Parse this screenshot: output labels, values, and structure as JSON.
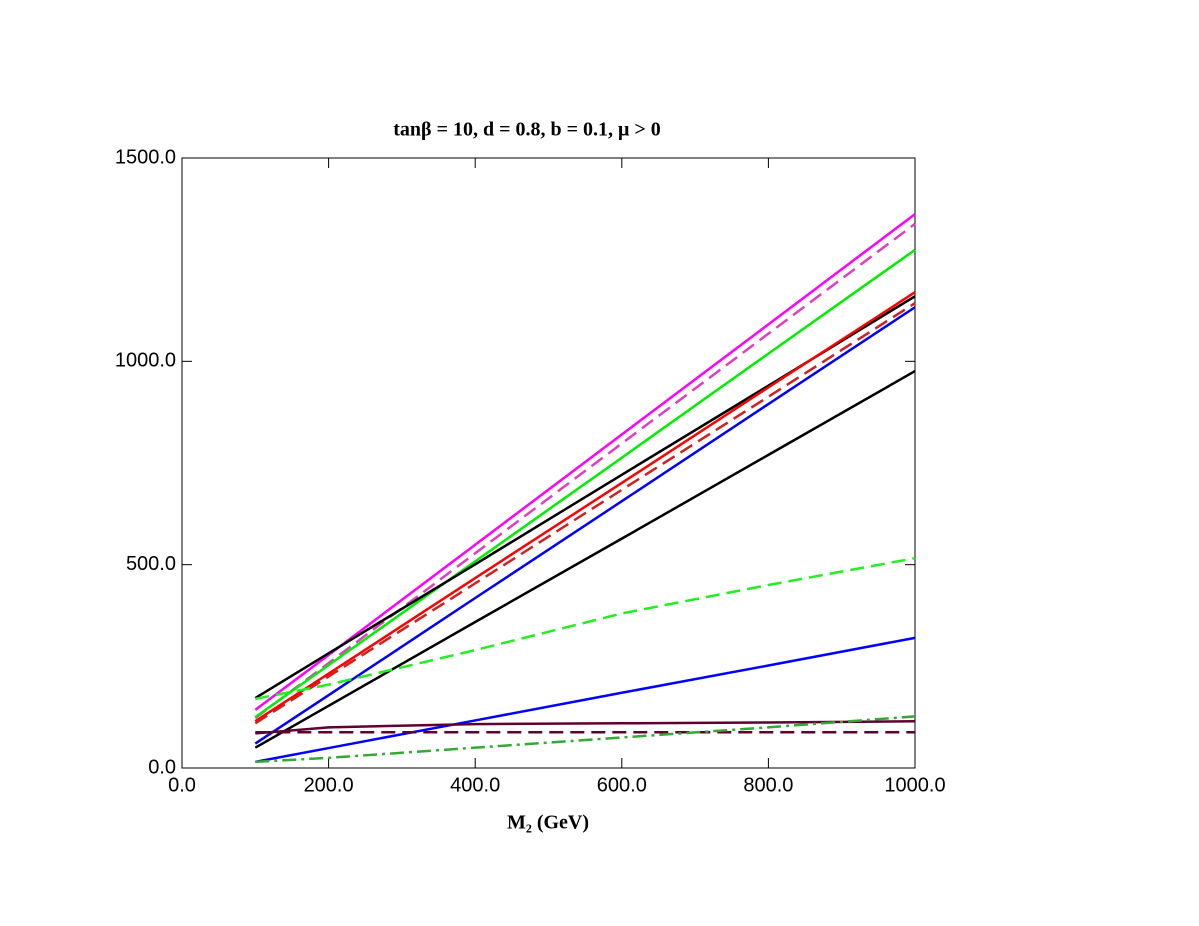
{
  "chart_data": {
    "type": "line",
    "title": "tanβ = 10, d = 0.8, b = 0.1, μ > 0",
    "xlabel": "M₂ (GeV)",
    "x": [
      100,
      200,
      400,
      600,
      800,
      1000
    ],
    "xlim": [
      0,
      1000
    ],
    "ylim": [
      0,
      1500
    ],
    "xticks": [
      {
        "value": 0,
        "label": "0.0"
      },
      {
        "value": 200,
        "label": "200.0"
      },
      {
        "value": 400,
        "label": "400.0"
      },
      {
        "value": 600,
        "label": "600.0"
      },
      {
        "value": 800,
        "label": "800.0"
      },
      {
        "value": 1000,
        "label": "1000.0"
      }
    ],
    "yticks": [
      {
        "value": 0,
        "label": "0.0"
      },
      {
        "value": 500,
        "label": "500.0"
      },
      {
        "value": 1000,
        "label": "1000.0"
      },
      {
        "value": 1500,
        "label": "1500.0"
      }
    ],
    "series": [
      {
        "color": "#ff00ff",
        "dash": "solid",
        "values": [
          143,
          278,
          549,
          820,
          1091,
          1362
        ]
      },
      {
        "color": "#e040c0",
        "dash": "dashed",
        "values": [
          123,
          258,
          528,
          798,
          1068,
          1338
        ]
      },
      {
        "color": "#00ee00",
        "dash": "solid",
        "values": [
          125,
          253,
          508,
          763,
          1019,
          1274
        ]
      },
      {
        "color": "#000000",
        "dash": "solid",
        "values": [
          172,
          282,
          501,
          721,
          940,
          1160
        ]
      },
      {
        "color": "#ff0000",
        "dash": "solid",
        "values": [
          115,
          232,
          467,
          701,
          936,
          1170
        ]
      },
      {
        "color": "#d02020",
        "dash": "dashed",
        "values": [
          110,
          225,
          454,
          684,
          913,
          1143
        ]
      },
      {
        "color": "#0000ff",
        "dash": "solid",
        "values": [
          60,
          179,
          418,
          656,
          895,
          1133
        ]
      },
      {
        "color": "#000000",
        "dash": "solid",
        "values": [
          50,
          153,
          359,
          564,
          770,
          976
        ]
      },
      {
        "color": "#22ee22",
        "dash": "dashed",
        "values": [
          170,
          205,
          290,
          380,
          450,
          516
        ]
      },
      {
        "color": "#0000ff",
        "dash": "solid",
        "values": [
          15,
          49,
          117,
          185,
          252,
          320
        ]
      },
      {
        "color": "#600030",
        "dash": "solid",
        "values": [
          85,
          100,
          108,
          110,
          112,
          115
        ]
      },
      {
        "color": "#600030",
        "dash": "dashed",
        "values": [
          88,
          88,
          88,
          88,
          88,
          88
        ]
      },
      {
        "color": "#33aa33",
        "dash": "dashdot",
        "values": [
          15,
          25,
          50,
          75,
          100,
          127
        ]
      }
    ]
  }
}
